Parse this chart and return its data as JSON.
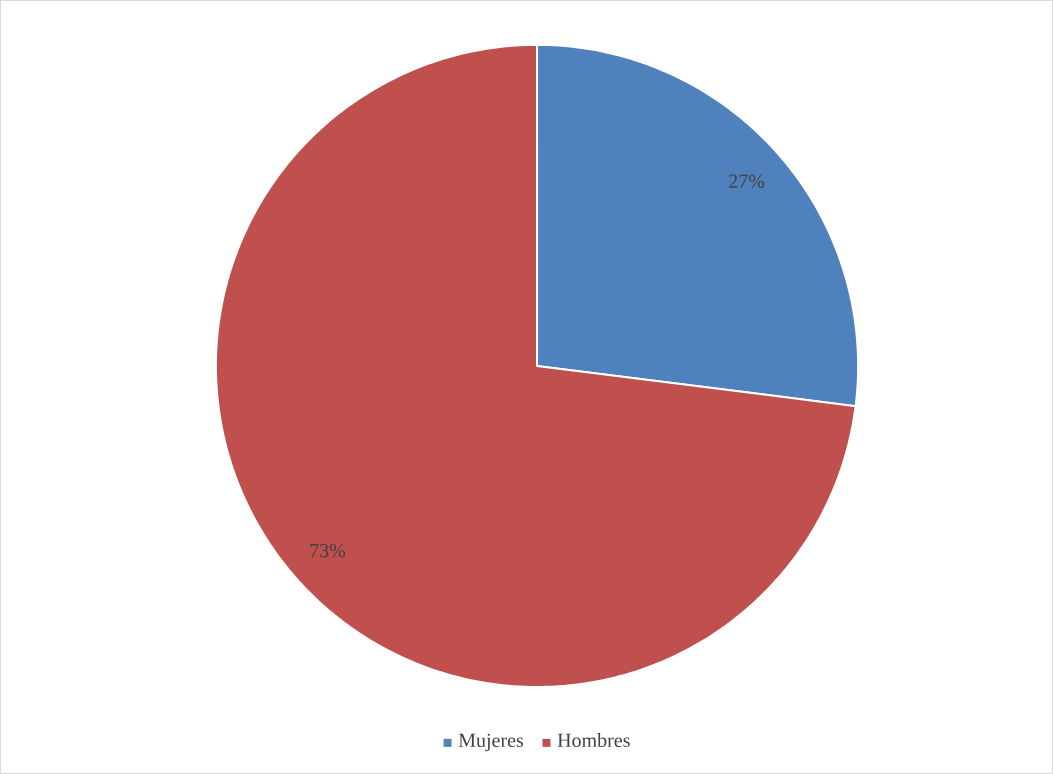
{
  "chart_data": {
    "type": "pie",
    "categories": [
      "Mujeres",
      "Hombres"
    ],
    "values": [
      27,
      73
    ],
    "colors": [
      "#4f81bd",
      "#c0504d"
    ],
    "value_labels": [
      "27%",
      "73%"
    ],
    "legend": "bottom"
  }
}
